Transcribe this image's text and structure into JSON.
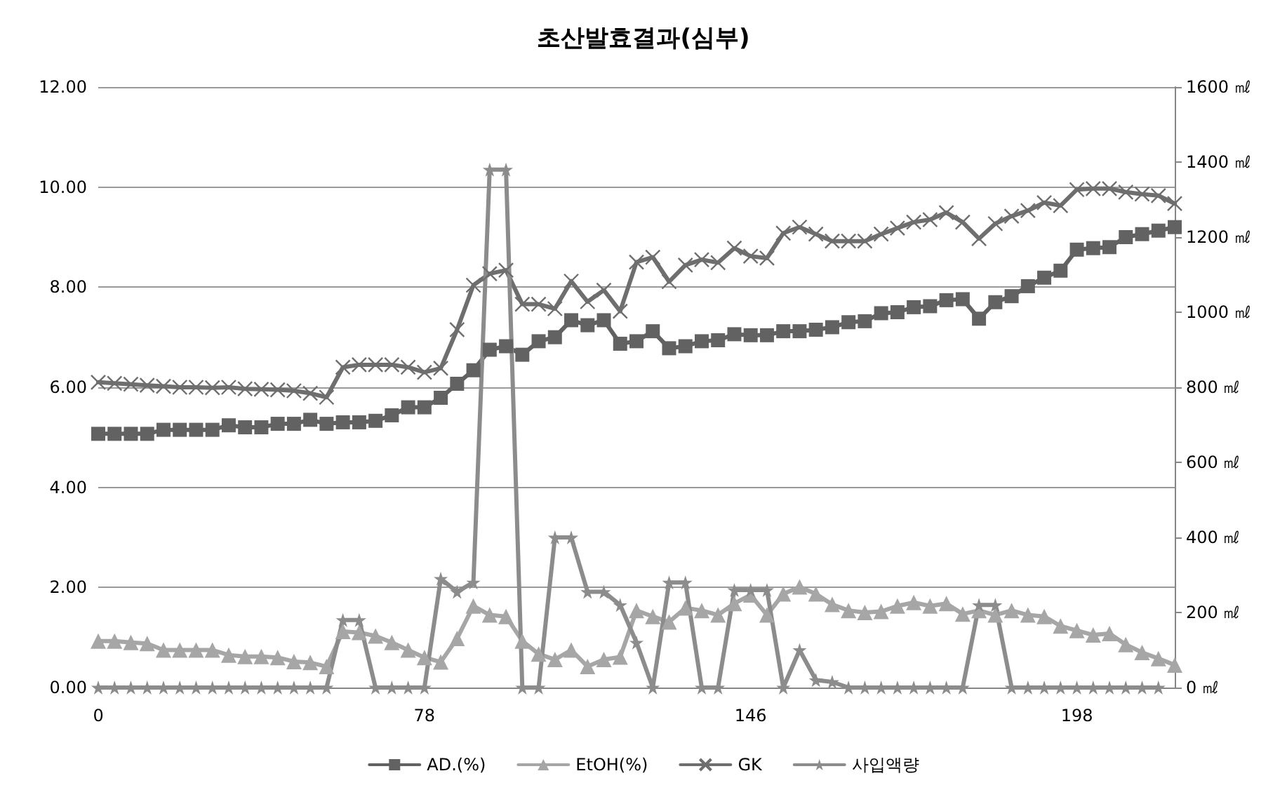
{
  "chart_data": {
    "type": "line",
    "title": "초산발효결과(심부)",
    "categories": [
      "0",
      null,
      null,
      null,
      null,
      null,
      null,
      null,
      null,
      null,
      null,
      null,
      null,
      null,
      null,
      null,
      null,
      null,
      null,
      null,
      "78",
      null,
      null,
      null,
      null,
      null,
      null,
      null,
      null,
      null,
      null,
      null,
      null,
      null,
      null,
      null,
      null,
      null,
      null,
      null,
      "146",
      null,
      null,
      null,
      null,
      null,
      null,
      null,
      null,
      null,
      null,
      null,
      null,
      null,
      null,
      null,
      null,
      null,
      null,
      null,
      "198",
      null,
      null,
      null,
      null,
      null,
      null
    ],
    "series": [
      {
        "name": "AD.(%)",
        "color": "#626262",
        "marker": "square",
        "values": [
          5.07,
          5.07,
          5.07,
          5.07,
          5.15,
          5.15,
          5.15,
          5.15,
          5.24,
          5.2,
          5.2,
          5.27,
          5.27,
          5.35,
          5.27,
          5.3,
          5.3,
          5.33,
          5.44,
          5.6,
          5.6,
          5.79,
          6.07,
          6.34,
          6.75,
          6.82,
          6.65,
          6.92,
          7.0,
          7.34,
          7.24,
          7.34,
          6.87,
          6.92,
          7.12,
          6.78,
          6.82,
          6.92,
          6.94,
          7.06,
          7.04,
          7.04,
          7.12,
          7.12,
          7.15,
          7.2,
          7.3,
          7.32,
          7.48,
          7.5,
          7.6,
          7.62,
          7.74,
          7.76,
          7.37,
          7.7,
          7.82,
          8.02,
          8.19,
          8.33,
          8.75,
          8.78,
          8.8,
          9.0,
          9.06,
          9.13,
          9.2
        ]
      },
      {
        "name": "EtOH(%)",
        "color": "#a6a6a6",
        "marker": "triangle",
        "values": [
          0.93,
          0.93,
          0.9,
          0.88,
          0.75,
          0.75,
          0.75,
          0.75,
          0.65,
          0.62,
          0.62,
          0.6,
          0.52,
          0.5,
          0.42,
          1.12,
          1.1,
          1.03,
          0.9,
          0.75,
          0.6,
          0.51,
          0.98,
          1.63,
          1.45,
          1.42,
          0.93,
          0.67,
          0.56,
          0.75,
          0.42,
          0.56,
          0.61,
          1.54,
          1.42,
          1.31,
          1.59,
          1.54,
          1.45,
          1.68,
          1.85,
          1.45,
          1.87,
          2.01,
          1.87,
          1.66,
          1.54,
          1.5,
          1.52,
          1.63,
          1.7,
          1.63,
          1.68,
          1.47,
          1.54,
          1.45,
          1.54,
          1.45,
          1.42,
          1.23,
          1.14,
          1.05,
          1.08,
          0.86,
          0.7,
          0.58,
          0.45
        ]
      },
      {
        "name": "GK",
        "color": "#6e6e6e",
        "marker": "cross",
        "values": [
          6.1,
          6.08,
          6.06,
          6.04,
          6.02,
          6.0,
          6.0,
          5.99,
          6.0,
          5.97,
          5.96,
          5.95,
          5.93,
          5.88,
          5.8,
          6.4,
          6.45,
          6.45,
          6.45,
          6.4,
          6.3,
          6.38,
          7.15,
          8.04,
          8.27,
          8.34,
          7.66,
          7.66,
          7.57,
          8.12,
          7.71,
          7.94,
          7.52,
          8.5,
          8.6,
          8.11,
          8.44,
          8.55,
          8.49,
          8.78,
          8.62,
          8.58,
          9.08,
          9.2,
          9.06,
          8.92,
          8.92,
          8.92,
          9.06,
          9.18,
          9.3,
          9.35,
          9.49,
          9.3,
          8.97,
          9.27,
          9.42,
          9.53,
          9.69,
          9.63,
          9.95,
          9.97,
          9.97,
          9.9,
          9.86,
          9.83,
          9.67
        ]
      },
      {
        "name": "사입액량",
        "color": "#8c8c8c",
        "marker": "star",
        "axis": "y2",
        "values": [
          0,
          0,
          0,
          0,
          0,
          0,
          0,
          0,
          0,
          0,
          0,
          0,
          0,
          0,
          0,
          180,
          180,
          0,
          0,
          0,
          0,
          290,
          255,
          280,
          1380,
          1380,
          0,
          0,
          400,
          400,
          255,
          255,
          220,
          120,
          0,
          280,
          280,
          0,
          0,
          260,
          260,
          260,
          0,
          100,
          20,
          15,
          0,
          0,
          0,
          0,
          0,
          0,
          0,
          0,
          220,
          220,
          0,
          0,
          0,
          0,
          0,
          0,
          0,
          0,
          0,
          0,
          null
        ]
      }
    ],
    "ylim": [
      0,
      12
    ],
    "yticks": [
      {
        "value": 0,
        "label": "0.00"
      },
      {
        "value": 2,
        "label": "2.00"
      },
      {
        "value": 4,
        "label": "4.00"
      },
      {
        "value": 6,
        "label": "6.00"
      },
      {
        "value": 8,
        "label": "8.00"
      },
      {
        "value": 10,
        "label": "10.00"
      },
      {
        "value": 12,
        "label": "12.00"
      }
    ],
    "y2lim": [
      0,
      1600
    ],
    "y2ticks": [
      {
        "value": 0,
        "label": "0 ㎖"
      },
      {
        "value": 200,
        "label": "200 ㎖"
      },
      {
        "value": 400,
        "label": "400 ㎖"
      },
      {
        "value": 600,
        "label": "600 ㎖"
      },
      {
        "value": 800,
        "label": "800 ㎖"
      },
      {
        "value": 1000,
        "label": "1000 ㎖"
      },
      {
        "value": 1200,
        "label": "1200 ㎖"
      },
      {
        "value": 1400,
        "label": "1400 ㎖"
      },
      {
        "value": 1600,
        "label": "1600 ㎖"
      }
    ],
    "grid": "y",
    "legend": "bottom"
  }
}
